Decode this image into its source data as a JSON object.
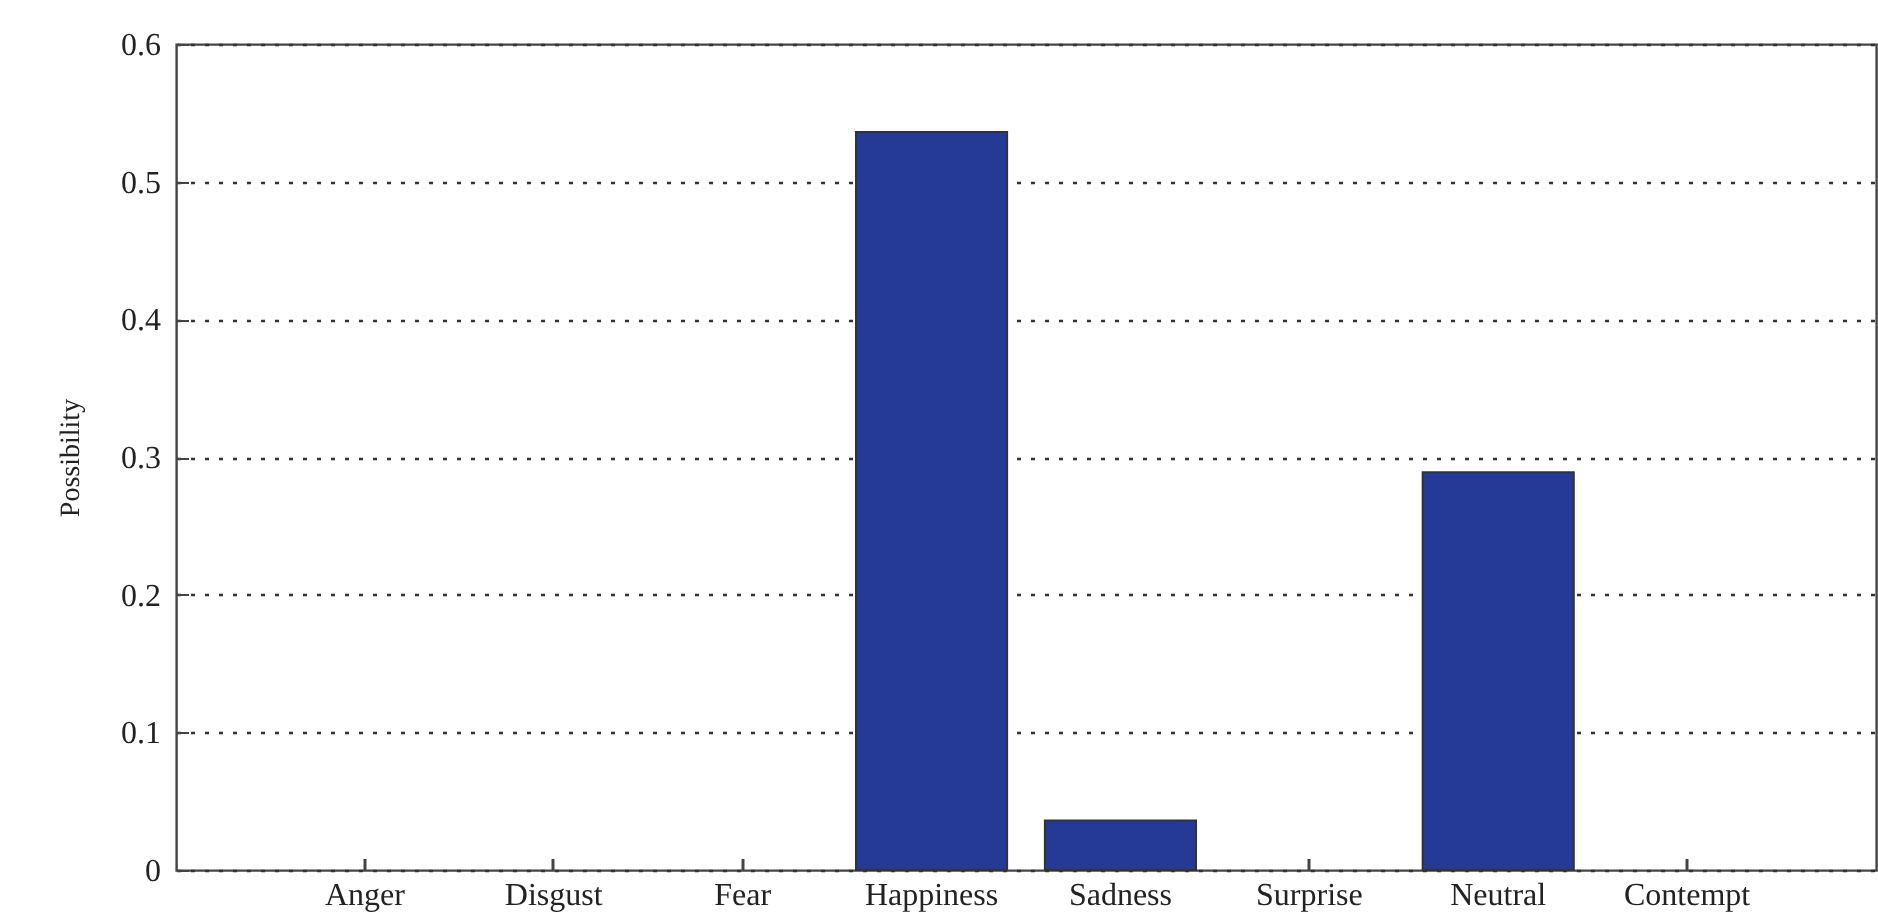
{
  "chart_data": {
    "type": "bar",
    "ylabel": "Possibility",
    "categories": [
      "Anger",
      "Disgust",
      "Fear",
      "Happiness",
      "Sadness",
      "Surprise",
      "Neutral",
      "Contempt"
    ],
    "values": [
      0,
      0,
      0,
      0.536,
      0.036,
      0,
      0.289,
      0
    ],
    "color": "#243a96",
    "ylim": [
      0,
      0.6
    ],
    "yticks": [
      0,
      0.1,
      0.2,
      0.3,
      0.4,
      0.5,
      0.6
    ],
    "grid": "y"
  }
}
